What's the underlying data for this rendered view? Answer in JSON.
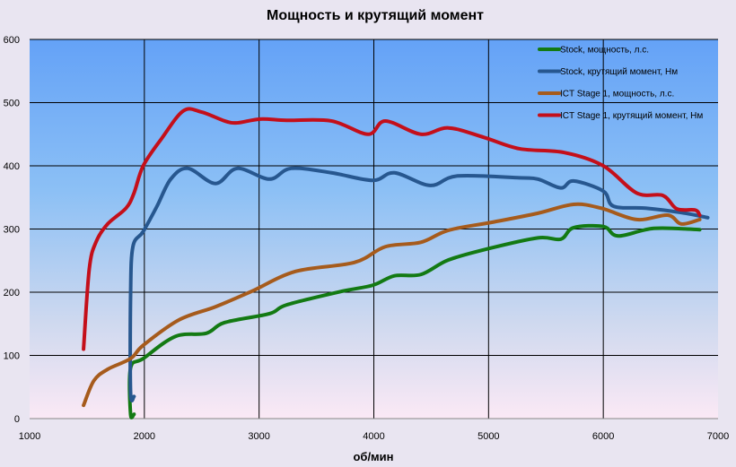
{
  "chart_data": {
    "type": "line",
    "title": "Мощность и крутящий момент",
    "xlabel": "об/мин",
    "ylabel": "",
    "xlim": [
      1000,
      7000
    ],
    "ylim": [
      0,
      600
    ],
    "xticks": [
      "1000",
      "2000",
      "3000",
      "4000",
      "5000",
      "6000",
      "7000"
    ],
    "yticks": [
      "0",
      "100",
      "200",
      "300",
      "400",
      "500",
      "600"
    ],
    "grid": true,
    "legend_position": "top-right",
    "series": [
      {
        "name": "Stock, мощность, л.с.",
        "color": "#137a13",
        "points": [
          [
            1910,
            7
          ],
          [
            1880,
            7
          ],
          [
            1880,
            80
          ],
          [
            1990,
            95
          ],
          [
            2270,
            130
          ],
          [
            2540,
            135
          ],
          [
            2700,
            152
          ],
          [
            3090,
            166
          ],
          [
            3240,
            180
          ],
          [
            3710,
            201
          ],
          [
            3990,
            211
          ],
          [
            4180,
            226
          ],
          [
            4410,
            228
          ],
          [
            4650,
            251
          ],
          [
            5000,
            269
          ],
          [
            5430,
            286
          ],
          [
            5630,
            284
          ],
          [
            5740,
            302
          ],
          [
            6000,
            304
          ],
          [
            6130,
            289
          ],
          [
            6440,
            301
          ],
          [
            6840,
            299
          ]
        ]
      },
      {
        "name": "Stock, крутящий момент, Нм",
        "color": "#27578f",
        "points": [
          [
            1910,
            35
          ],
          [
            1880,
            42
          ],
          [
            1880,
            194
          ],
          [
            1900,
            272
          ],
          [
            1990,
            296
          ],
          [
            2110,
            336
          ],
          [
            2230,
            379
          ],
          [
            2380,
            396
          ],
          [
            2620,
            372
          ],
          [
            2810,
            396
          ],
          [
            3090,
            379
          ],
          [
            3280,
            396
          ],
          [
            3630,
            389
          ],
          [
            3990,
            377
          ],
          [
            4180,
            389
          ],
          [
            4490,
            369
          ],
          [
            4730,
            384
          ],
          [
            5270,
            381
          ],
          [
            5430,
            379
          ],
          [
            5630,
            365
          ],
          [
            5740,
            376
          ],
          [
            6000,
            360
          ],
          [
            6090,
            336
          ],
          [
            6370,
            333
          ],
          [
            6680,
            326
          ],
          [
            6910,
            318
          ]
        ]
      },
      {
        "name": "ICT Stage 1, мощность, л.с.",
        "color": "#a65b1c",
        "points": [
          [
            1470,
            21
          ],
          [
            1560,
            60
          ],
          [
            1680,
            78
          ],
          [
            1880,
            95
          ],
          [
            1990,
            116
          ],
          [
            2300,
            156
          ],
          [
            2620,
            177
          ],
          [
            2930,
            201
          ],
          [
            3320,
            233
          ],
          [
            3830,
            247
          ],
          [
            4100,
            272
          ],
          [
            4410,
            279
          ],
          [
            4650,
            298
          ],
          [
            5040,
            311
          ],
          [
            5430,
            325
          ],
          [
            5740,
            339
          ],
          [
            5980,
            333
          ],
          [
            6290,
            315
          ],
          [
            6560,
            322
          ],
          [
            6680,
            308
          ],
          [
            6840,
            315
          ]
        ]
      },
      {
        "name": "ICT Stage 1, крутящий момент, Нм",
        "color": "#c40f1a",
        "points": [
          [
            1470,
            110
          ],
          [
            1520,
            237
          ],
          [
            1580,
            280
          ],
          [
            1680,
            308
          ],
          [
            1840,
            333
          ],
          [
            1910,
            357
          ],
          [
            1990,
            400
          ],
          [
            2150,
            443
          ],
          [
            2340,
            487
          ],
          [
            2500,
            485
          ],
          [
            2700,
            471
          ],
          [
            2810,
            468
          ],
          [
            3010,
            474
          ],
          [
            3240,
            472
          ],
          [
            3630,
            471
          ],
          [
            3950,
            450
          ],
          [
            4100,
            471
          ],
          [
            4410,
            450
          ],
          [
            4650,
            460
          ],
          [
            4960,
            445
          ],
          [
            5270,
            427
          ],
          [
            5660,
            421
          ],
          [
            6000,
            400
          ],
          [
            6290,
            357
          ],
          [
            6520,
            353
          ],
          [
            6640,
            332
          ],
          [
            6800,
            330
          ],
          [
            6840,
            322
          ]
        ]
      }
    ]
  }
}
